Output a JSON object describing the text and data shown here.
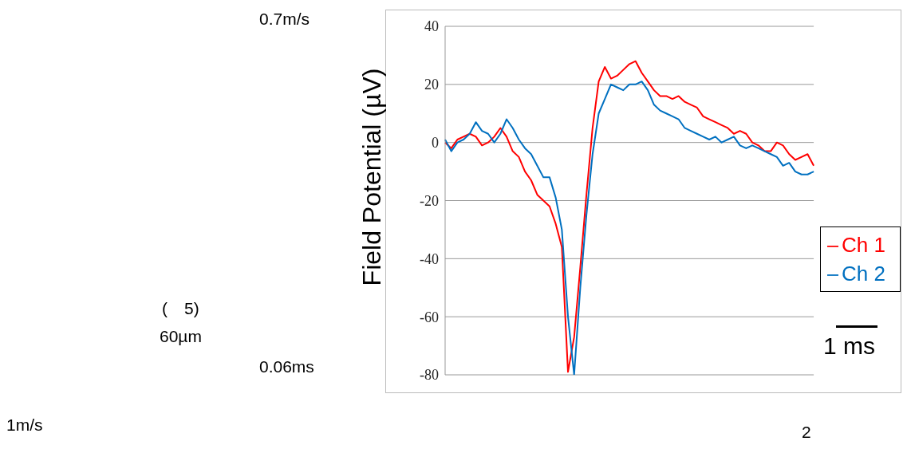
{
  "chart_data": {
    "type": "line",
    "ylabel": "Field Potential (µV)",
    "categories": [
      null,
      null,
      null,
      null,
      null,
      null,
      null,
      null,
      null,
      null,
      null,
      null,
      null,
      null,
      null,
      null,
      null,
      null,
      null,
      null,
      null,
      null,
      null,
      null,
      null,
      null,
      null,
      null,
      null,
      null,
      null,
      null,
      null,
      null,
      null,
      null,
      null,
      null,
      null,
      null,
      null,
      null,
      null,
      null,
      null,
      null,
      null,
      null,
      null,
      null,
      null,
      null,
      null,
      null,
      null,
      null,
      null,
      null,
      null,
      null,
      null
    ],
    "series": [
      {
        "name": "Ch 1",
        "color": "#ff0000",
        "values": [
          0,
          -2,
          1,
          2,
          3,
          2,
          -1,
          0,
          2,
          5,
          2,
          -3,
          -5,
          -10,
          -13,
          -18,
          -20,
          -22,
          -28,
          -36,
          -79,
          -67,
          -43,
          -18,
          5,
          21,
          26,
          22,
          23,
          25,
          27,
          28,
          24,
          21,
          18,
          16,
          16,
          15,
          16,
          14,
          13,
          12,
          9,
          8,
          7,
          6,
          5,
          3,
          4,
          3,
          0,
          -1,
          -3,
          -3,
          0,
          -1,
          -4,
          -6,
          -5,
          -4,
          -8
        ]
      },
      {
        "name": "Ch 2",
        "color": "#0070c0",
        "values": [
          1,
          -3,
          0,
          1,
          3,
          7,
          4,
          3,
          0,
          3,
          8,
          5,
          1,
          -2,
          -4,
          -8,
          -12,
          -12,
          -19,
          -30,
          -60,
          -80,
          -50,
          -25,
          -4,
          10,
          15,
          20,
          19,
          18,
          20,
          20,
          21,
          18,
          13,
          11,
          10,
          9,
          8,
          5,
          4,
          3,
          2,
          1,
          2,
          0,
          1,
          2,
          -1,
          -2,
          -1,
          -2,
          -3,
          -4,
          -5,
          -8,
          -7,
          -10,
          -11,
          -11,
          -10
        ]
      }
    ],
    "ylim": [
      -80,
      40
    ],
    "yticks": [
      -80,
      -60,
      -40,
      -20,
      0,
      20,
      40
    ],
    "grid": "y",
    "legend": "right",
    "tick_labels": "y",
    "line_style": "solid",
    "marker": "none",
    "annotations": [
      "0.7m/s",
      "(　5)",
      "60µm",
      "0.06ms",
      "1m/s",
      "2",
      "1 ms"
    ]
  }
}
